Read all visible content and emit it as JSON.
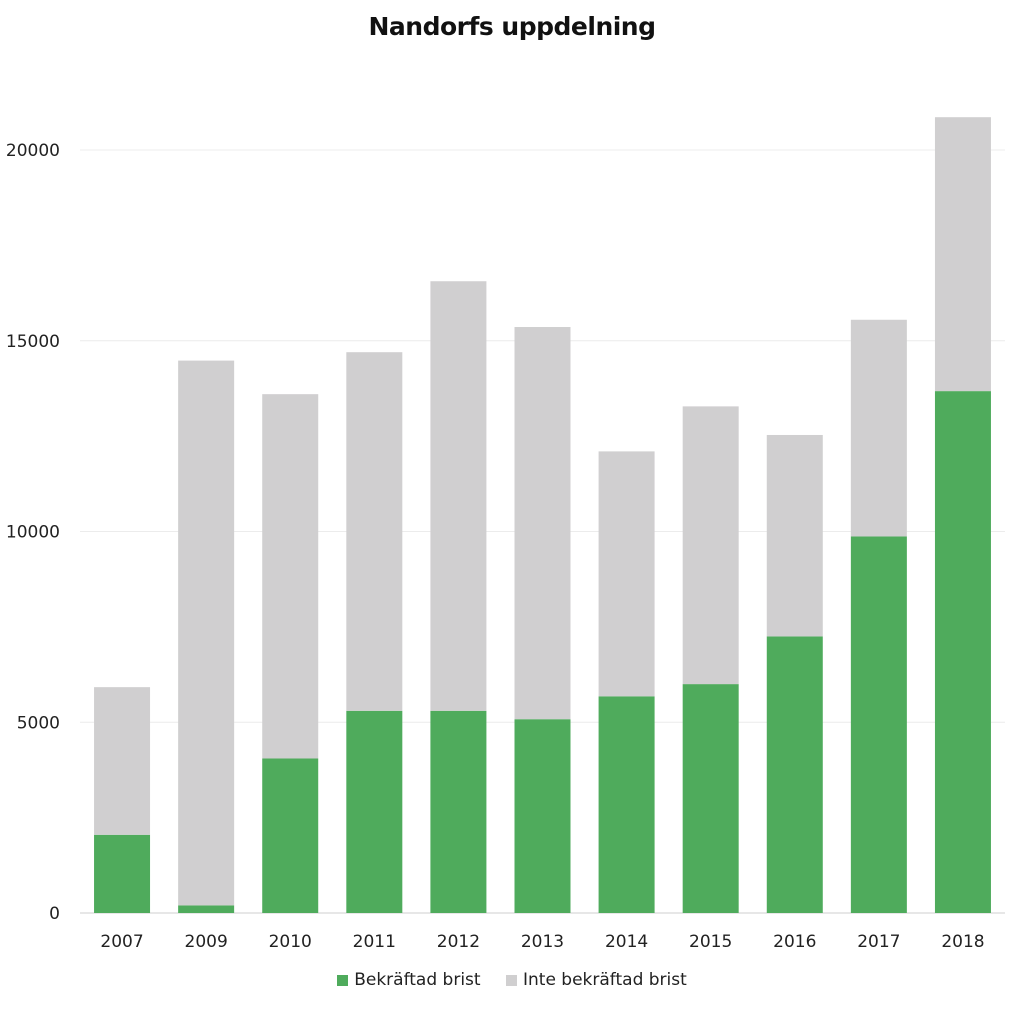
{
  "chart_data": {
    "type": "bar",
    "stacked": true,
    "title": "Nandorfs uppdelning",
    "xlabel": "",
    "ylabel": "",
    "categories": [
      "2007",
      "2009",
      "2010",
      "2011",
      "2012",
      "2013",
      "2014",
      "2015",
      "2016",
      "2017",
      "2018"
    ],
    "series": [
      {
        "name": "Bekräftad brist",
        "color": "#4fab5c",
        "values": [
          2050,
          200,
          4050,
          5300,
          5300,
          5080,
          5680,
          6000,
          7250,
          9870,
          13680
        ]
      },
      {
        "name": "Inte bekräftad brist",
        "color": "#d0cfd0",
        "values": [
          3870,
          14280,
          9550,
          9400,
          11260,
          10280,
          6420,
          7280,
          5280,
          5680,
          7180
        ]
      }
    ],
    "yticks": [
      0,
      5000,
      10000,
      15000,
      20000
    ],
    "ytick_labels": [
      "0",
      "5000",
      "10000",
      "15000",
      "20000"
    ],
    "ylim": [
      0,
      21500
    ],
    "grid": true,
    "legend_position": "bottom"
  }
}
